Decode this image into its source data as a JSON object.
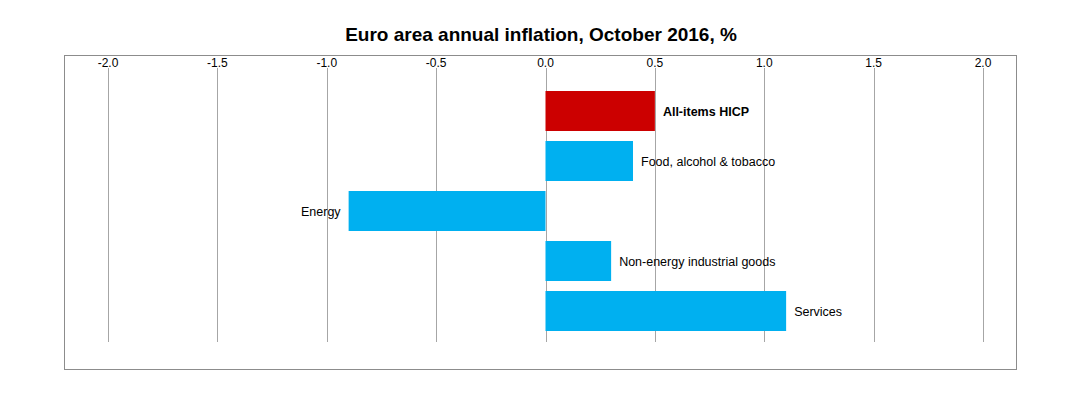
{
  "chart_data": {
    "type": "bar",
    "orientation": "horizontal",
    "title": "Euro area annual inflation, October 2016, %",
    "categories": [
      "All-items HICP",
      "Food, alcohol & tobacco",
      "Energy",
      "Non-energy industrial goods",
      "Services"
    ],
    "values": [
      0.5,
      0.4,
      -0.9,
      0.3,
      1.1
    ],
    "colors": [
      "#cc0000",
      "#00b0f0",
      "#00b0f0",
      "#00b0f0",
      "#00b0f0"
    ],
    "xlim": [
      -2,
      2
    ],
    "xticks": [
      {
        "value": -2,
        "label": "-2.0"
      },
      -1.5,
      {
        "value": -1,
        "label": "-1.0"
      },
      -0.5,
      {
        "value": 0,
        "label": "0.0"
      },
      0.5,
      {
        "value": 1,
        "label": "1.0"
      },
      1.5,
      {
        "value": 2,
        "label": "2.0"
      }
    ],
    "grid": true
  }
}
